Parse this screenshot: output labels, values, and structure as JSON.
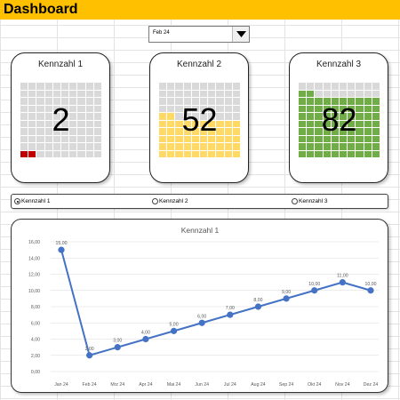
{
  "header": {
    "title": "Dashboard"
  },
  "dropdown": {
    "value": "Feb 24"
  },
  "cards": [
    {
      "title": "Kennzahl 1",
      "value": "2",
      "filled": 2,
      "color": "#c00000"
    },
    {
      "title": "Kennzahl 2",
      "value": "52",
      "filled": 52,
      "color": "#ffd966"
    },
    {
      "title": "Kennzahl 3",
      "value": "82",
      "filled": 82,
      "color": "#70ad47"
    }
  ],
  "radios": [
    {
      "label": "Kennzahl 1",
      "selected": true
    },
    {
      "label": "Kennzahl 2",
      "selected": false
    },
    {
      "label": "Kennzahl 3",
      "selected": false
    }
  ],
  "chart_data": {
    "type": "line",
    "title": "Kennzahl 1",
    "categories": [
      "Jan 24",
      "Feb 24",
      "Mrz 24",
      "Apr 24",
      "Mai 24",
      "Jun 24",
      "Jul 24",
      "Aug 24",
      "Sep 24",
      "Okt 24",
      "Nov 24",
      "Dez 24"
    ],
    "values": [
      15,
      2,
      3,
      4,
      5,
      6,
      7,
      8,
      9,
      10,
      11,
      10
    ],
    "data_labels": [
      "15,00",
      "2,00",
      "3,00",
      "4,00",
      "5,00",
      "6,00",
      "7,00",
      "8,00",
      "9,00",
      "10,00",
      "11,00",
      "10,00"
    ],
    "yticks": [
      "0,00",
      "2,00",
      "4,00",
      "6,00",
      "8,00",
      "10,00",
      "12,00",
      "14,00",
      "16,00"
    ],
    "ylim": [
      0,
      16
    ],
    "line_color": "#4472c4",
    "grid": true
  }
}
